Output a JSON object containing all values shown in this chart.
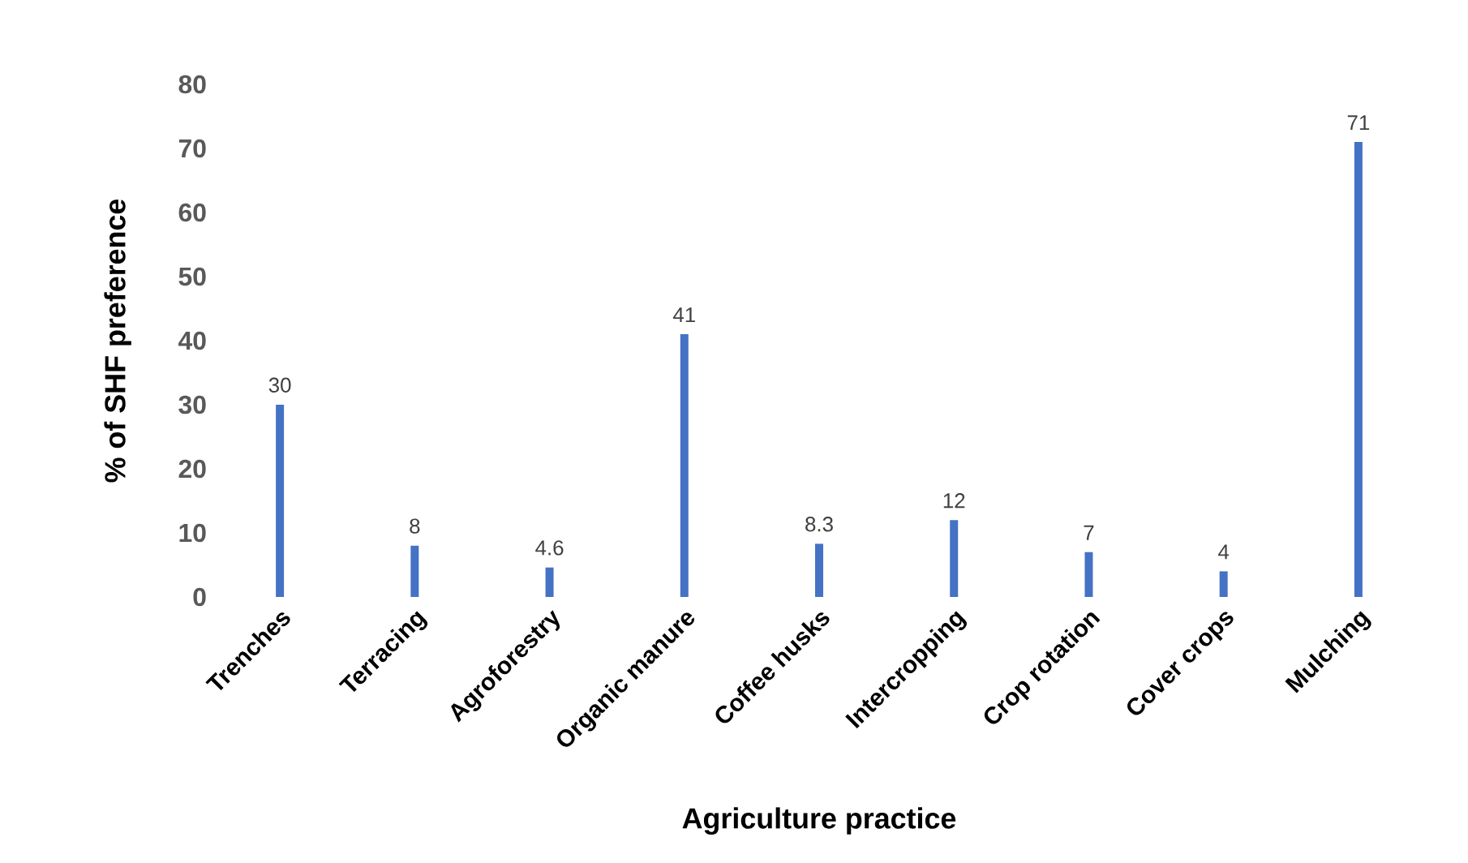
{
  "chart_data": {
    "type": "bar",
    "xlabel": "Agriculture practice",
    "ylabel": "% of SHF  preference",
    "categories": [
      "Trenches",
      "Terracing",
      "Agroforestry",
      "Organic manure",
      "Coffee husks",
      "Intercropping",
      "Crop rotation",
      "Cover crops",
      "Mulching"
    ],
    "values": [
      30,
      8,
      4.6,
      41,
      8.3,
      12,
      7,
      4,
      71
    ],
    "color": "#4472c4",
    "ylim": [
      0,
      80
    ],
    "yticks": [
      0,
      10,
      20,
      30,
      40,
      50,
      60,
      70,
      80
    ],
    "data_labels": true
  }
}
